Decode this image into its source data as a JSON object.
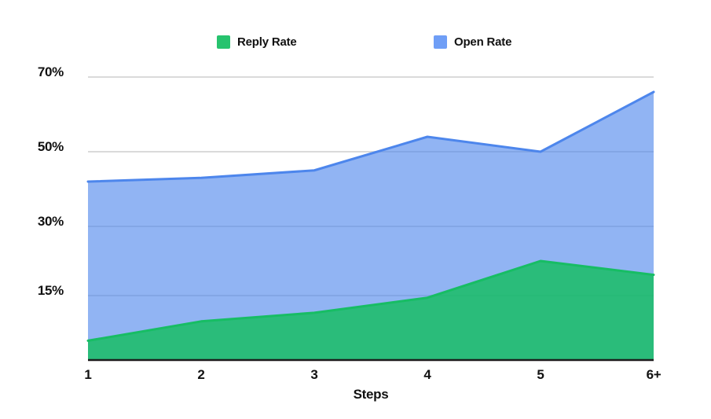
{
  "legend": {
    "items": [
      {
        "label": "Reply Rate",
        "color": "#27c36e"
      },
      {
        "label": "Open Rate",
        "color": "#6f9ef6"
      }
    ]
  },
  "chart_data": {
    "type": "area",
    "xlabel": "Steps",
    "x_categories": [
      "1",
      "2",
      "3",
      "4",
      "5",
      "6+"
    ],
    "series": [
      {
        "name": "Reply Rate",
        "values": [
          4.5,
          9,
          11,
          14.5,
          22.5,
          19.5
        ],
        "fill": "rgba(23,189,100,0.85)",
        "stroke": "#17bd64"
      },
      {
        "name": "Open Rate",
        "values": [
          42,
          43,
          45,
          54,
          50,
          66
        ],
        "fill": "rgba(77,134,236,0.62)",
        "stroke": "#4d86ec"
      }
    ],
    "yticks": [
      {
        "value": 15,
        "label": "15%"
      },
      {
        "value": 30,
        "label": "30%"
      },
      {
        "value": 50,
        "label": "50%"
      },
      {
        "value": 70,
        "label": "70%"
      }
    ],
    "ylim": [
      0,
      75
    ],
    "grid": true,
    "legend_position": "top",
    "gridline_color": "#dadada",
    "axis_color": "#1c1c1c",
    "label_color": "#111111"
  }
}
